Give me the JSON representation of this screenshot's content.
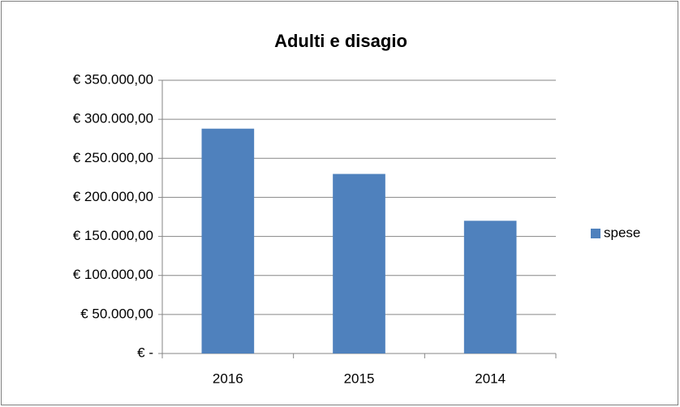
{
  "chart_data": {
    "type": "bar",
    "title": "Adulti e disagio",
    "categories": [
      "2016",
      "2015",
      "2014"
    ],
    "series": [
      {
        "name": "spese",
        "color": "#4f81bd",
        "values": [
          288000,
          230000,
          170000
        ]
      }
    ],
    "ylim": [
      0,
      350000
    ],
    "yticks": [
      {
        "value": 0,
        "label": "€ -"
      },
      {
        "value": 50000,
        "label": "€ 50.000,00"
      },
      {
        "value": 100000,
        "label": "€ 100.000,00"
      },
      {
        "value": 150000,
        "label": "€ 150.000,00"
      },
      {
        "value": 200000,
        "label": "€ 200.000,00"
      },
      {
        "value": 250000,
        "label": "€ 250.000,00"
      },
      {
        "value": 300000,
        "label": "€ 300.000,00"
      },
      {
        "value": 350000,
        "label": "€ 350.000,00"
      }
    ],
    "grid": true,
    "legend": "right"
  }
}
